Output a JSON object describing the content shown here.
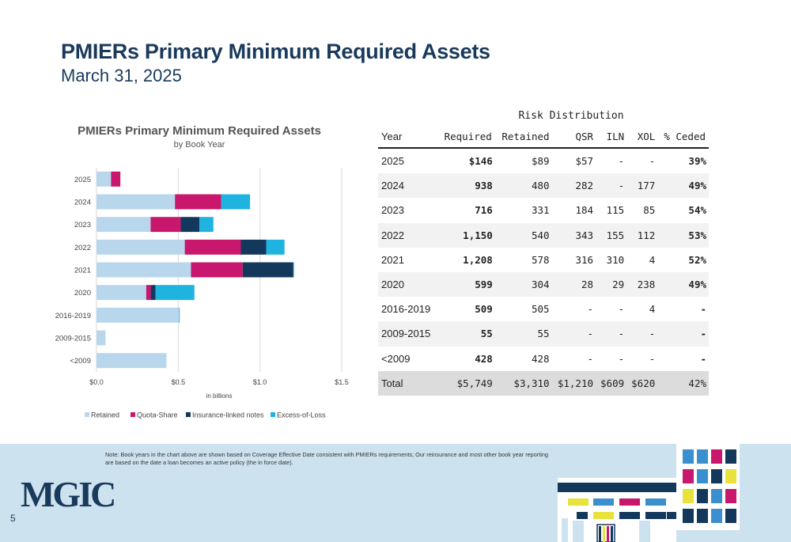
{
  "header": {
    "title": "PMIERs Primary Minimum Required Assets",
    "subtitle": "March 31, 2025"
  },
  "chart_data": {
    "type": "bar",
    "orientation": "horizontal",
    "stacked": true,
    "title": "PMIERs Primary Minimum Required Assets",
    "subtitle": "by Book Year",
    "xlabel": "in billions",
    "ylabel": "",
    "xlim": [
      0,
      1.5
    ],
    "xticks": [
      "$0.0",
      "$0.5",
      "$1.0",
      "$1.5"
    ],
    "xtick_values": [
      0,
      0.5,
      1.0,
      1.5
    ],
    "grid": true,
    "legend_position": "bottom",
    "categories": [
      "2025",
      "2024",
      "2023",
      "2022",
      "2021",
      "2020",
      "2016-2019",
      "2009-2015",
      "<2009"
    ],
    "series": [
      {
        "name": "Retained",
        "color": "#b9d7ec",
        "values": [
          0.089,
          0.48,
          0.331,
          0.54,
          0.578,
          0.304,
          0.505,
          0.055,
          0.428
        ]
      },
      {
        "name": "Quota-Share",
        "color": "#c8176c",
        "values": [
          0.057,
          0.282,
          0.184,
          0.343,
          0.316,
          0.028,
          0,
          0,
          0
        ]
      },
      {
        "name": "Insurance-linked notes",
        "color": "#13385c",
        "values": [
          0,
          0,
          0.115,
          0.155,
          0.31,
          0.029,
          0,
          0,
          0
        ]
      },
      {
        "name": "Excess-of-Loss",
        "color": "#1fb3e0",
        "values": [
          0,
          0.177,
          0.085,
          0.112,
          0.004,
          0.238,
          0.004,
          0,
          0
        ]
      }
    ]
  },
  "table": {
    "group_header": "Risk Distribution",
    "columns": [
      "Year",
      "Required",
      "Retained",
      "QSR",
      "ILN",
      "XOL",
      "% Ceded"
    ],
    "rows": [
      [
        "2025",
        "$146",
        "$89",
        "$57",
        "-",
        "-",
        "39%"
      ],
      [
        "2024",
        "938",
        "480",
        "282",
        "-",
        "177",
        "49%"
      ],
      [
        "2023",
        "716",
        "331",
        "184",
        "115",
        "85",
        "54%"
      ],
      [
        "2022",
        "1,150",
        "540",
        "343",
        "155",
        "112",
        "53%"
      ],
      [
        "2021",
        "1,208",
        "578",
        "316",
        "310",
        "4",
        "52%"
      ],
      [
        "2020",
        "599",
        "304",
        "28",
        "29",
        "238",
        "49%"
      ],
      [
        "2016-2019",
        "509",
        "505",
        "-",
        "-",
        "4",
        "-"
      ],
      [
        "2009-2015",
        "55",
        "55",
        "-",
        "-",
        "-",
        "-"
      ],
      [
        "<2009",
        "428",
        "428",
        "-",
        "-",
        "-",
        "-"
      ]
    ],
    "total": [
      "Total",
      "$5,749",
      "$3,310",
      "$1,210",
      "$609",
      "$620",
      "42%"
    ]
  },
  "footer": {
    "note": "Note: Book years in the chart above are shown based on Coverage Effective Date consistent with PMIERs requirements; Our reinsurance and most other book year reporting are based on the date a loan becomes an active policy (the in force date).",
    "logo_text": "MGIC",
    "page_number": "5"
  }
}
